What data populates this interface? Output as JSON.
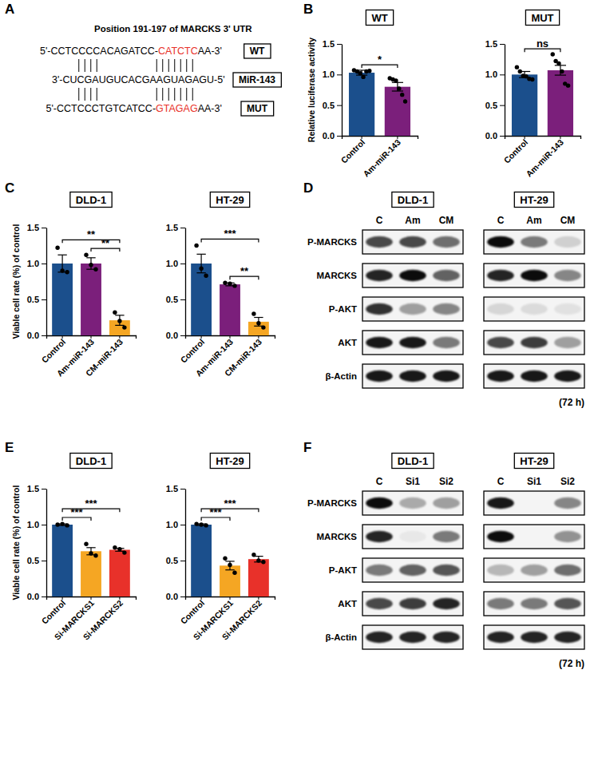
{
  "chart_data": [
    {
      "type": "bar",
      "panel": "B",
      "title": "WT",
      "ylabel": "Relative luciferase activity",
      "categories": [
        "Control",
        "Am-miR-143"
      ],
      "values": [
        1.03,
        0.8
      ],
      "errors": [
        0.04,
        0.07
      ],
      "points": [
        [
          1.07,
          1.05,
          1.02,
          0.96,
          1.05,
          1.06
        ],
        [
          0.94,
          0.92,
          0.9,
          0.77,
          0.67,
          0.56
        ]
      ],
      "colors": [
        "#1b4f8c",
        "#7b1f7b"
      ],
      "significance": [
        {
          "pair": [
            0,
            1
          ],
          "label": "*"
        }
      ],
      "ylim": [
        0,
        1.5
      ],
      "yticks": [
        {
          "value": 0,
          "label": "0.0"
        },
        0.5,
        {
          "value": 1,
          "label": "1.0"
        },
        1.5
      ]
    },
    {
      "type": "bar",
      "title": "MUT",
      "categories": [
        "Control",
        "Am-miR-143"
      ],
      "values": [
        1.0,
        1.07
      ],
      "errors": [
        0.05,
        0.08
      ],
      "points": [
        [
          1.12,
          1.05,
          0.98,
          0.97,
          0.93,
          0.92
        ],
        [
          1.33,
          1.22,
          1.18,
          1.05,
          0.85,
          0.82
        ]
      ],
      "colors": [
        "#1b4f8c",
        "#7b1f7b"
      ],
      "significance": [
        {
          "pair": [
            0,
            1
          ],
          "label": "ns"
        }
      ],
      "ylim": [
        0,
        1.5
      ],
      "yticks": [
        {
          "value": 0,
          "label": "0.0"
        },
        0.5,
        {
          "value": 1,
          "label": "1.0"
        },
        1.5
      ]
    },
    {
      "type": "bar",
      "panel": "C",
      "title": "DLD-1",
      "ylabel": "Viable cell rate (%) of control",
      "categories": [
        "Control",
        "Am-miR-143",
        "CM-miR-143"
      ],
      "values": [
        1.0,
        1.0,
        0.21
      ],
      "errors": [
        0.12,
        0.08,
        0.07
      ],
      "points": [
        [
          1.22,
          0.9,
          0.88
        ],
        [
          1.12,
          0.98,
          0.92
        ],
        [
          0.32,
          0.2,
          0.11
        ]
      ],
      "colors": [
        "#1b4f8c",
        "#7b1f7b",
        "#f5a623"
      ],
      "significance": [
        {
          "pair": [
            0,
            2
          ],
          "label": "**"
        },
        {
          "pair": [
            1,
            2
          ],
          "label": "**"
        }
      ],
      "ylim": [
        0,
        1.5
      ],
      "yticks": [
        {
          "value": 0,
          "label": "0.0"
        },
        0.5,
        {
          "value": 1,
          "label": "1.0"
        },
        1.5
      ]
    },
    {
      "type": "bar",
      "title": "HT-29",
      "categories": [
        "Control",
        "Am-miR-143",
        "CM-miR-143"
      ],
      "values": [
        1.0,
        0.71,
        0.19
      ],
      "errors": [
        0.13,
        0.02,
        0.06
      ],
      "points": [
        [
          1.25,
          0.93,
          0.83
        ],
        [
          0.73,
          0.72,
          0.69
        ],
        [
          0.3,
          0.17,
          0.11
        ]
      ],
      "colors": [
        "#1b4f8c",
        "#7b1f7b",
        "#f5a623"
      ],
      "significance": [
        {
          "pair": [
            0,
            2
          ],
          "label": "***"
        },
        {
          "pair": [
            1,
            2
          ],
          "label": "**"
        }
      ],
      "ylim": [
        0,
        1.5
      ],
      "yticks": [
        {
          "value": 0,
          "label": "0.0"
        },
        0.5,
        {
          "value": 1,
          "label": "1.0"
        },
        1.5
      ]
    },
    {
      "type": "bar",
      "panel": "E",
      "title": "DLD-1",
      "ylabel": "Viable cell rate (%) of control",
      "categories": [
        "Control",
        "Si-MARCKS1",
        "Si-MARCKS2"
      ],
      "values": [
        1.0,
        0.63,
        0.65
      ],
      "errors": [
        0.01,
        0.05,
        0.02
      ],
      "points": [
        [
          1.0,
          1.01,
          0.99
        ],
        [
          0.73,
          0.6,
          0.57
        ],
        [
          0.68,
          0.66,
          0.61
        ]
      ],
      "colors": [
        "#1b4f8c",
        "#f5a623",
        "#e8312a"
      ],
      "significance": [
        {
          "pair": [
            0,
            1
          ],
          "label": "***"
        },
        {
          "pair": [
            0,
            2
          ],
          "label": "***"
        }
      ],
      "ylim": [
        0,
        1.5
      ],
      "yticks": [
        {
          "value": 0,
          "label": "0.0"
        },
        0.5,
        {
          "value": 1,
          "label": "1.0"
        },
        1.5
      ]
    },
    {
      "type": "bar",
      "title": "HT-29",
      "categories": [
        "Control",
        "Si-MARCKS1",
        "Si-MARCKS2"
      ],
      "values": [
        1.0,
        0.43,
        0.52
      ],
      "errors": [
        0.01,
        0.06,
        0.04
      ],
      "points": [
        [
          1.01,
          1.0,
          0.99
        ],
        [
          0.53,
          0.44,
          0.33
        ],
        [
          0.58,
          0.5,
          0.48
        ]
      ],
      "colors": [
        "#1b4f8c",
        "#f5a623",
        "#e8312a"
      ],
      "significance": [
        {
          "pair": [
            0,
            1
          ],
          "label": "***"
        },
        {
          "pair": [
            0,
            2
          ],
          "label": "***"
        }
      ],
      "ylim": [
        0,
        1.5
      ],
      "yticks": [
        {
          "value": 0,
          "label": "0.0"
        },
        0.5,
        {
          "value": 1,
          "label": "1.0"
        },
        1.5
      ]
    }
  ],
  "sequence": {
    "panel": "A",
    "title": "Position 191-197 of MARCKS 3' UTR",
    "highlight_color": "#e8312a",
    "rows": [
      {
        "label": "WT",
        "segments": [
          {
            "text": "5'-CCTCCCCACAGATCC-"
          },
          {
            "text": "CATCTC",
            "highlight": true
          },
          {
            "text": "AA-3'"
          }
        ]
      },
      {
        "label": "MiR-143",
        "segments": [
          {
            "text": "3'-CUCGAUGUCACGAAGUAGAGU-5'"
          }
        ]
      },
      {
        "label": "MUT",
        "segments": [
          {
            "text": "5'-CCTCCCTGTCATCC-"
          },
          {
            "text": "GTAGAG",
            "highlight": true
          },
          {
            "text": "AA-3'"
          }
        ]
      }
    ]
  },
  "blot_panels": [
    {
      "panel": "D",
      "time": "(72 h)",
      "row_labels": [
        "P-MARCKS",
        "MARCKS",
        "P-AKT",
        "AKT",
        "β-Actin"
      ],
      "blots": [
        {
          "title": "DLD-1",
          "columns": [
            "C",
            "Am",
            "CM"
          ],
          "intensity": [
            [
              0.7,
              0.7,
              0.55
            ],
            [
              0.85,
              0.95,
              0.6
            ],
            [
              0.8,
              0.35,
              0.45
            ],
            [
              0.9,
              0.9,
              0.5
            ],
            [
              0.9,
              0.9,
              0.9
            ]
          ]
        },
        {
          "title": "HT-29",
          "columns": [
            "C",
            "Am",
            "CM"
          ],
          "intensity": [
            [
              0.95,
              0.5,
              0.15
            ],
            [
              0.85,
              0.95,
              0.45
            ],
            [
              0.12,
              0.1,
              0.08
            ],
            [
              0.7,
              0.75,
              0.35
            ],
            [
              0.9,
              0.9,
              0.9
            ]
          ]
        }
      ]
    },
    {
      "panel": "F",
      "time": "(72 h)",
      "row_labels": [
        "P-MARCKS",
        "MARCKS",
        "P-AKT",
        "AKT",
        "β-Actin"
      ],
      "blots": [
        {
          "title": "DLD-1",
          "columns": [
            "C",
            "Si1",
            "Si2"
          ],
          "intensity": [
            [
              0.95,
              0.3,
              0.35
            ],
            [
              0.85,
              0.05,
              0.5
            ],
            [
              0.5,
              0.6,
              0.65
            ],
            [
              0.7,
              0.75,
              0.85
            ],
            [
              0.85,
              0.85,
              0.85
            ]
          ]
        },
        {
          "title": "HT-29",
          "columns": [
            "C",
            "Si1",
            "Si2"
          ],
          "intensity": [
            [
              0.9,
              0,
              0.45
            ],
            [
              0.95,
              0,
              0.4
            ],
            [
              0.25,
              0.35,
              0.55
            ],
            [
              0.5,
              0.5,
              0.65
            ],
            [
              0.85,
              0.85,
              0.85
            ]
          ]
        }
      ]
    }
  ]
}
